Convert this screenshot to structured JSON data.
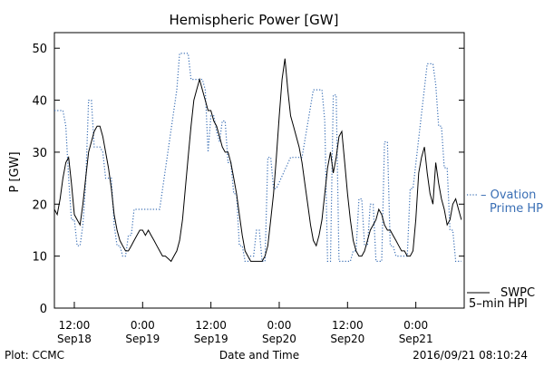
{
  "chart_data": {
    "type": "line",
    "title": "Hemispheric Power [GW]",
    "ylabel": "P [GW]",
    "xlabel": "Date and Time",
    "ylim": [
      0,
      53
    ],
    "xlim": [
      8.5,
      80.5
    ],
    "grid": false,
    "legend_position": "right",
    "x_unit": "hours since 2016-09-18 00:00",
    "y_ticks": [
      0,
      10,
      20,
      30,
      40,
      50
    ],
    "x_ticks": [
      {
        "x": 12,
        "time": "12:00",
        "date": "Sep18"
      },
      {
        "x": 24,
        "time": "0:00",
        "date": "Sep19"
      },
      {
        "x": 36,
        "time": "12:00",
        "date": "Sep19"
      },
      {
        "x": 48,
        "time": "0:00",
        "date": "Sep20"
      },
      {
        "x": 60,
        "time": "12:00",
        "date": "Sep20"
      },
      {
        "x": 72,
        "time": "0:00",
        "date": "Sep21"
      }
    ],
    "series": [
      {
        "name": "SWPC 5-min HPI",
        "color": "#000000",
        "style": "solid",
        "x": [
          8.5,
          9,
          9.5,
          10,
          10.5,
          11,
          11.5,
          12,
          12.5,
          13,
          13.5,
          14,
          14.5,
          15,
          15.5,
          16,
          16.5,
          17,
          17.5,
          18,
          18.5,
          19,
          19.5,
          20,
          20.5,
          21,
          21.5,
          22,
          22.5,
          23,
          23.5,
          24,
          24.5,
          25,
          25.5,
          26,
          26.5,
          27,
          27.5,
          28,
          28.5,
          29,
          29.5,
          30,
          30.5,
          31,
          31.5,
          32,
          32.5,
          33,
          33.5,
          34,
          34.5,
          35,
          35.5,
          36,
          36.5,
          37,
          37.5,
          38,
          38.5,
          39,
          39.5,
          40,
          40.5,
          41,
          41.5,
          42,
          42.5,
          43,
          43.5,
          44,
          44.5,
          45,
          45.5,
          46,
          46.5,
          47,
          47.5,
          48,
          48.5,
          49,
          49.5,
          50,
          50.5,
          51,
          51.5,
          52,
          52.5,
          53,
          53.5,
          54,
          54.5,
          55,
          55.5,
          56,
          56.5,
          57,
          57.5,
          58,
          58.5,
          59,
          59.5,
          60,
          60.5,
          61,
          61.5,
          62,
          62.5,
          63,
          63.5,
          64,
          64.5,
          65,
          65.5,
          66,
          66.5,
          67,
          67.5,
          68,
          68.5,
          69,
          69.5,
          70,
          70.5,
          71,
          71.5,
          72,
          72.5,
          73,
          73.5,
          74,
          74.5,
          75,
          75.5,
          76,
          76.5,
          77,
          77.5,
          78,
          78.5,
          79,
          79.5,
          80
        ],
        "values": [
          19,
          18,
          21,
          25,
          28,
          29,
          24,
          18,
          17,
          16,
          20,
          25,
          30,
          32,
          34,
          35,
          35,
          33,
          30,
          27,
          23,
          18,
          15,
          13,
          12,
          11,
          11,
          12,
          13,
          14,
          15,
          15,
          14,
          15,
          14,
          13,
          12,
          11,
          10,
          10,
          9.5,
          9,
          10,
          11,
          13,
          17,
          23,
          29,
          35,
          40,
          42,
          44,
          42,
          40,
          38,
          38,
          36,
          35,
          33,
          31,
          30,
          30,
          28,
          25,
          22,
          18,
          14,
          11,
          10,
          9,
          9,
          9,
          9,
          9,
          10,
          12,
          17,
          22,
          29,
          37,
          44,
          48,
          42,
          37,
          35,
          33,
          31,
          28,
          24,
          20,
          16,
          13,
          12,
          14,
          17,
          22,
          27,
          30,
          26,
          29,
          33,
          34,
          28,
          22,
          17,
          13,
          11,
          10,
          10,
          11,
          13,
          15,
          16,
          17,
          19,
          18,
          16,
          15,
          15,
          14,
          13,
          12,
          11,
          11,
          10,
          10,
          11,
          17,
          26,
          29,
          31,
          26,
          22,
          20,
          28,
          24,
          21,
          19,
          16,
          17,
          20,
          21,
          19,
          17
        ],
        "label_lines": [
          "SWPC",
          "5-min HPI"
        ]
      },
      {
        "name": "Ovation Prime HPI",
        "color": "#3a6fb5",
        "style": "dotted",
        "x": [
          8.5,
          10,
          10.5,
          11,
          11.5,
          12,
          12.5,
          13,
          13.5,
          14,
          14.5,
          15,
          15.5,
          16,
          16.5,
          17,
          17.5,
          18,
          18.5,
          19,
          19.5,
          20,
          20.5,
          21,
          21.5,
          22,
          22.5,
          23,
          26,
          26.5,
          27,
          30,
          30.5,
          32,
          32.5,
          34,
          34.5,
          35,
          35.5,
          36,
          36.5,
          37,
          37.5,
          38,
          38.5,
          39,
          39.5,
          40,
          40.5,
          41,
          41.5,
          42,
          42.5,
          43,
          43.5,
          44,
          44.5,
          45,
          45.5,
          46,
          46.5,
          47,
          47.5,
          50,
          52,
          54,
          55,
          55.5,
          56,
          56.5,
          57,
          57.5,
          58,
          58.5,
          59,
          59.5,
          60,
          60.5,
          61,
          61.5,
          62,
          62.5,
          63,
          63.5,
          64,
          64.5,
          65,
          65.5,
          66,
          66.5,
          67,
          67.5,
          68,
          68.5,
          69,
          69.5,
          70,
          70.5,
          71,
          71.5,
          74,
          74.5,
          75,
          75.5,
          76,
          76.5,
          77,
          77.5,
          78,
          78.5,
          79,
          79.5,
          80
        ],
        "values": [
          38,
          38,
          35,
          25,
          17,
          17,
          12,
          12,
          16,
          24,
          40,
          40,
          31,
          31,
          31,
          30,
          25,
          25,
          25,
          16,
          12,
          12,
          10,
          10,
          14,
          14,
          19,
          19,
          19,
          19,
          19,
          42,
          49,
          49,
          44,
          44,
          44,
          42,
          30,
          37,
          37,
          34,
          32,
          36,
          36,
          28,
          28,
          22,
          22,
          12,
          12,
          9,
          9,
          10,
          10,
          15,
          15,
          9,
          9,
          29,
          29,
          23,
          23,
          29,
          29,
          42,
          42,
          42,
          36,
          9,
          9,
          41,
          41,
          9,
          9,
          9,
          9,
          9,
          11,
          11,
          21,
          21,
          12,
          12,
          20,
          20,
          9,
          9,
          9,
          32,
          32,
          12,
          12,
          10,
          10,
          10,
          10,
          10,
          23,
          23,
          47,
          47,
          47,
          43,
          35,
          35,
          27,
          27,
          15,
          15,
          9,
          9,
          9
        ]
      }
    ],
    "legend_labels": {
      "ovation": [
        "– Ovation",
        "Prime HPI"
      ],
      "swpc": [
        "SWPC",
        "5–min HPI"
      ]
    }
  },
  "footer": {
    "left": "Plot: CCMC",
    "center": "Date and Time",
    "right": "2016/09/21 08:10:24"
  }
}
